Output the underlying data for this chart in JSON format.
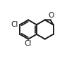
{
  "bg_color": "#ffffff",
  "line_color": "#1a1a1a",
  "line_width": 1.4,
  "text_color": "#1a1a1a",
  "cl_label": "Cl",
  "o_label": "O",
  "font_size": 7.5,
  "figsize": [
    1.05,
    0.84
  ],
  "dpi": 100,
  "scale": 0.165,
  "ox": 0.35,
  "oy": 0.5
}
